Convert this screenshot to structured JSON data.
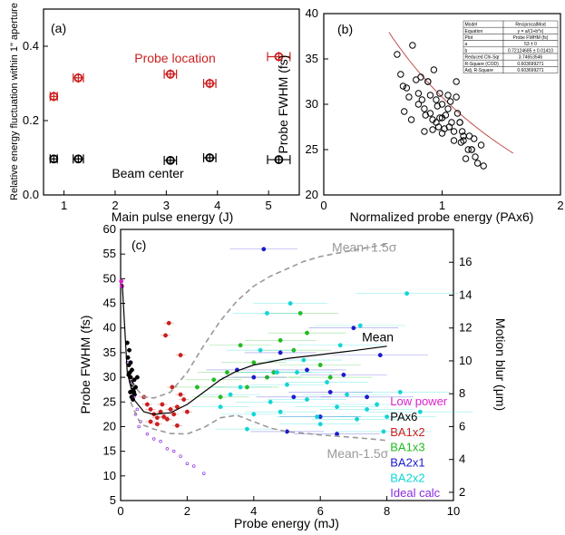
{
  "colors": {
    "red": "#cc1f1f",
    "black": "#000000",
    "green": "#22bb22",
    "blue": "#1b1bcf",
    "cyan": "#11d6d6",
    "magenta": "#dd22cc",
    "purple": "#8a2be2",
    "gray": "#999999",
    "fit": "#c0504d"
  },
  "chart_data": [
    {
      "panel": "(a)",
      "type": "scatter",
      "xlabel": "Main pulse energy (J)",
      "ylabel": "Relative energy fluctuation within 1\" aperture",
      "xlim": [
        0.6,
        5.6
      ],
      "ylim": [
        0,
        0.5
      ],
      "xticks": [
        "1",
        "2",
        "3",
        "4",
        "5"
      ],
      "yticks": [
        "0.0",
        "0.2",
        "0.4"
      ],
      "series": [
        {
          "name": "Probe location",
          "color_key": "red",
          "x": [
            0.8,
            1.28,
            3.08,
            3.85,
            5.2
          ],
          "y": [
            0.265,
            0.315,
            0.325,
            0.3,
            0.372
          ],
          "xerr": [
            0.07,
            0.1,
            0.12,
            0.12,
            0.22
          ],
          "yerr": [
            0.013,
            0.013,
            0.013,
            0.013,
            0.013
          ]
        },
        {
          "name": "Beam center",
          "color_key": "black",
          "x": [
            0.8,
            1.28,
            3.08,
            3.85,
            5.2
          ],
          "y": [
            0.097,
            0.097,
            0.093,
            0.1,
            0.095
          ],
          "xerr": [
            0.07,
            0.1,
            0.12,
            0.12,
            0.22
          ],
          "yerr": [
            0.01,
            0.01,
            0.01,
            0.01,
            0.01
          ]
        }
      ],
      "annotations": [
        "Probe location",
        "Beam center"
      ]
    },
    {
      "panel": "(b)",
      "type": "scatter",
      "xlabel": "Normalized probe energy (PAx6)",
      "ylabel": "Probe FWHM (fs)",
      "xlim": [
        0,
        2
      ],
      "ylim": [
        20,
        40
      ],
      "xticks": [
        "0",
        "1",
        "2"
      ],
      "yticks": [
        "20",
        "25",
        "30",
        "35",
        "40"
      ],
      "x": [
        0.62,
        0.65,
        0.67,
        0.7,
        0.72,
        0.75,
        0.78,
        0.8,
        0.82,
        0.83,
        0.85,
        0.86,
        0.88,
        0.9,
        0.9,
        0.92,
        0.93,
        0.95,
        0.96,
        0.97,
        0.98,
        1.0,
        1.0,
        1.02,
        1.03,
        1.05,
        1.06,
        1.07,
        1.08,
        1.1,
        1.1,
        1.12,
        1.13,
        1.15,
        1.16,
        1.17,
        1.18,
        1.2,
        1.22,
        1.23,
        1.25,
        1.27,
        1.28,
        1.3,
        1.33,
        1.35,
        0.8,
        0.85,
        0.95,
        1.05,
        1.15,
        0.68,
        0.74,
        0.88,
        1.0,
        1.12,
        1.25,
        0.92,
        1.18,
        0.98
      ],
      "y": [
        35.5,
        33.3,
        32.0,
        31.8,
        30.8,
        36.5,
        32.7,
        31.2,
        33.0,
        30.5,
        29.5,
        28.8,
        32.5,
        31.0,
        29.0,
        28.3,
        33.8,
        30.5,
        29.8,
        27.5,
        31.2,
        30.0,
        28.5,
        27.3,
        28.8,
        29.5,
        27.5,
        30.3,
        28.0,
        27.0,
        26.0,
        32.5,
        29.0,
        28.0,
        25.8,
        27.0,
        26.0,
        24.0,
        25.0,
        26.5,
        25.0,
        26.2,
        24.2,
        23.5,
        25.5,
        23.2,
        30.0,
        27.0,
        28.0,
        31.0,
        28.0,
        29.2,
        28.3,
        32.5,
        26.8,
        30.8,
        25.0,
        27.2,
        26.5,
        28.5
      ],
      "fit_curve": {
        "model": "ReciprocalMod",
        "equation": "y = a/(1+b*x)"
      },
      "fit_table": [
        [
          "Model",
          "ReciprocalMod"
        ],
        [
          "Equation",
          "y = a/(1+b*x)"
        ],
        [
          "Plot",
          "Probe FWHM (fs)"
        ],
        [
          "a",
          "53 ± 0"
        ],
        [
          "b",
          "0.72124685 ± 0.01410"
        ],
        [
          "Reduced Chi-Sqr",
          "3.74653546"
        ],
        [
          "R-Square (COD)",
          "0.603699271"
        ],
        [
          "Adj. R-Square",
          "0.603699271"
        ]
      ]
    },
    {
      "panel": "(c)",
      "type": "scatter",
      "xlabel": "Probe energy (mJ)",
      "ylabel": "Probe FWHM (fs)",
      "y2label": "Motion blur (μm)",
      "xlim": [
        0,
        10
      ],
      "ylim": [
        5,
        60
      ],
      "y2lim": [
        1.5,
        18
      ],
      "xticks": [
        "0",
        "2",
        "4",
        "6",
        "8",
        "10"
      ],
      "yticks": [
        "5",
        "10",
        "15",
        "20",
        "25",
        "30",
        "35",
        "40",
        "45",
        "50",
        "55",
        "60"
      ],
      "y2ticks": [
        "2",
        "4",
        "6",
        "8",
        "10",
        "12",
        "14",
        "16"
      ],
      "lines": [
        {
          "name": "Mean",
          "style": "solid",
          "color_key": "black",
          "x": [
            0.05,
            0.2,
            0.4,
            0.7,
            1.0,
            1.5,
            2.0,
            2.5,
            3.0,
            3.5,
            4.0,
            5.0,
            6.0,
            7.0,
            8.0
          ],
          "y": [
            49.0,
            31.0,
            25.5,
            23.0,
            22.5,
            22.8,
            24.5,
            27.0,
            29.5,
            31.3,
            32.5,
            33.8,
            34.6,
            35.4,
            36.3
          ]
        },
        {
          "name": "Mean+1.5σ",
          "style": "dashed",
          "color_key": "gray",
          "x": [
            0.3,
            0.7,
            1.0,
            1.5,
            2.0,
            2.5,
            3.0,
            3.5,
            4.0,
            4.5,
            5.0,
            5.5,
            6.0,
            7.0,
            8.0
          ],
          "y": [
            29.0,
            26.0,
            25.8,
            27.0,
            31.0,
            36.5,
            41.5,
            45.5,
            48.5,
            50.5,
            52.0,
            53.5,
            54.5,
            55.8,
            57.0
          ]
        },
        {
          "name": "Mean-1.5σ",
          "style": "dashed",
          "color_key": "gray",
          "x": [
            0.3,
            0.6,
            1.0,
            1.5,
            2.0,
            2.5,
            3.0,
            3.5,
            4.0,
            4.5,
            5.0,
            6.0,
            7.0,
            8.0
          ],
          "y": [
            25.0,
            20.5,
            19.5,
            18.6,
            18.5,
            19.8,
            21.8,
            22.3,
            21.0,
            19.7,
            19.0,
            18.3,
            17.8,
            17.2
          ]
        }
      ],
      "series": [
        {
          "name": "Low power",
          "color_key": "magenta",
          "x": [
            0.02,
            0.04
          ],
          "y": [
            49.5,
            48.5
          ]
        },
        {
          "name": "PAx6",
          "color_key": "black",
          "x": [
            0.2,
            0.22,
            0.25,
            0.28,
            0.3,
            0.32,
            0.35,
            0.38,
            0.4,
            0.42,
            0.45,
            0.5,
            0.3,
            0.26,
            0.34,
            0.37,
            0.41,
            0.24,
            0.29,
            0.33
          ],
          "y": [
            37.0,
            34.0,
            32.5,
            31.0,
            30.0,
            29.0,
            28.5,
            27.5,
            27.0,
            26.5,
            28.0,
            30.0,
            33.0,
            35.5,
            31.5,
            25.5,
            29.5,
            30.5,
            27.0,
            26.0
          ]
        },
        {
          "name": "BA1x2",
          "color_key": "red",
          "x": [
            0.7,
            0.8,
            0.9,
            1.0,
            1.1,
            1.2,
            1.3,
            1.4,
            1.5,
            1.6,
            1.7,
            1.8,
            1.9,
            2.0,
            1.35,
            1.45,
            1.8,
            0.9,
            1.1,
            1.25,
            1.55,
            1.7
          ],
          "y": [
            26.0,
            24.5,
            23.5,
            22.5,
            21.8,
            23.0,
            22.0,
            21.5,
            23.5,
            22.5,
            24.0,
            26.5,
            25.5,
            23.0,
            38.5,
            41.0,
            34.5,
            21.0,
            20.5,
            24.5,
            28.0,
            20.2
          ]
        },
        {
          "name": "BA1x3",
          "color_key": "green",
          "x": [
            2.3,
            2.8,
            3.2,
            3.6,
            4.0,
            4.4,
            4.8,
            5.2,
            5.6,
            6.0,
            6.3,
            3.0,
            3.8,
            4.6,
            5.4
          ],
          "y": [
            28.0,
            29.5,
            31.0,
            36.5,
            33.0,
            30.0,
            37.5,
            35.5,
            39.0,
            32.5,
            30.0,
            26.0,
            28.0,
            31.0,
            43.0
          ]
        },
        {
          "name": "BA2x1",
          "color_key": "blue",
          "x": [
            3.5,
            4.0,
            4.3,
            4.8,
            5.2,
            5.6,
            6.0,
            6.3,
            6.7,
            7.0,
            7.4,
            7.8,
            5.0,
            6.5
          ],
          "y": [
            31.5,
            30.0,
            56.0,
            35.0,
            26.0,
            31.5,
            22.0,
            27.0,
            30.5,
            40.0,
            26.0,
            34.5,
            19.0,
            18.5
          ]
        },
        {
          "name": "BA2x2",
          "color_key": "cyan",
          "x": [
            3.0,
            3.3,
            3.6,
            4.0,
            4.2,
            4.5,
            4.8,
            5.0,
            5.3,
            5.6,
            5.9,
            6.2,
            6.5,
            6.8,
            7.1,
            7.4,
            7.7,
            8.0,
            8.4,
            9.0,
            4.4,
            5.5,
            6.6,
            7.2,
            3.8,
            8.6,
            6.0,
            5.1,
            4.7,
            7.9
          ],
          "y": [
            24.0,
            26.5,
            28.0,
            22.5,
            35.5,
            25.0,
            23.0,
            28.5,
            31.0,
            25.5,
            22.0,
            29.0,
            24.0,
            26.5,
            21.5,
            23.5,
            24.5,
            22.0,
            27.0,
            23.0,
            43.0,
            33.5,
            36.5,
            40.5,
            19.5,
            47.0,
            20.5,
            45.0,
            31.0,
            19.0
          ]
        },
        {
          "name": "Ideal calc",
          "color_key": "purple",
          "x": [
            0.2,
            0.3,
            0.4,
            0.5,
            0.6,
            0.8,
            1.0,
            1.2,
            1.4,
            1.6,
            1.8,
            2.0,
            2.2,
            2.5,
            0.45,
            0.55
          ],
          "y": [
            33.0,
            29.0,
            26.0,
            23.5,
            21.0,
            18.5,
            17.5,
            17.0,
            15.5,
            15.0,
            14.0,
            12.5,
            12.0,
            10.5,
            22.5,
            20.0
          ]
        }
      ],
      "legend_text": [
        "Low power",
        "PAx6",
        "BA1x2",
        "BA1x3",
        "BA2x1",
        "BA2x2",
        "Ideal calc"
      ],
      "legend_position": "bottom-right",
      "line_labels": [
        "Mean",
        "Mean+1.5σ",
        "Mean-1.5σ"
      ]
    }
  ]
}
